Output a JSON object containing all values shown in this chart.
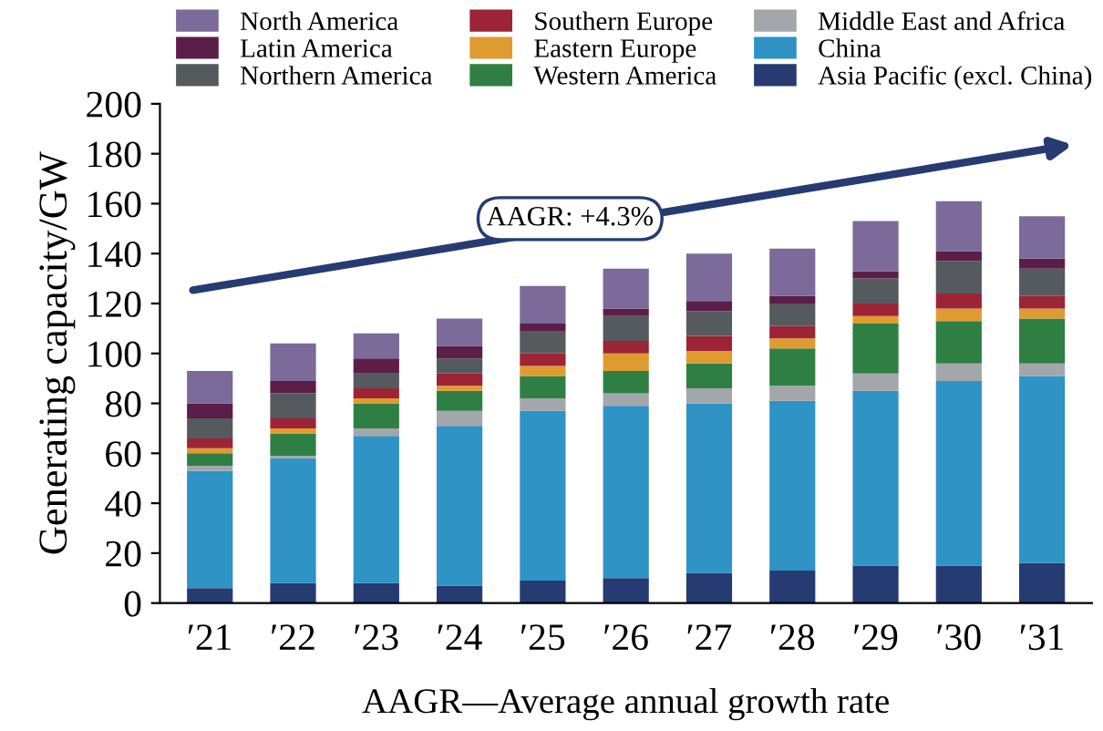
{
  "chart_data": {
    "type": "bar",
    "stacked": true,
    "ylabel": "Generating capacity/GW",
    "xlabel": "AAGR—Average annual growth rate",
    "categories": [
      "′21",
      "′22",
      "′23",
      "′24",
      "′25",
      "′26",
      "′27",
      "′28",
      "′29",
      "′30",
      "′31"
    ],
    "series": [
      {
        "name": "Asia Pacific (excl. China)",
        "color": "#263b72",
        "values": [
          6,
          8,
          8,
          7,
          9,
          10,
          12,
          13,
          15,
          15,
          16
        ]
      },
      {
        "name": "China",
        "color": "#2f93c6",
        "values": [
          47,
          50,
          59,
          64,
          68,
          69,
          68,
          68,
          70,
          74,
          75
        ]
      },
      {
        "name": "Middle East and Africa",
        "color": "#a3a6aa",
        "values": [
          2,
          1,
          3,
          6,
          5,
          5,
          6,
          6,
          7,
          7,
          5
        ]
      },
      {
        "name": "Western America",
        "color": "#2f7f45",
        "values": [
          5,
          9,
          10,
          8,
          9,
          9,
          10,
          15,
          20,
          17,
          18
        ]
      },
      {
        "name": "Eastern Europe",
        "color": "#e09b30",
        "values": [
          2,
          2,
          2,
          2,
          4,
          7,
          5,
          4,
          3,
          5,
          4
        ]
      },
      {
        "name": "Southern Europe",
        "color": "#9c2436",
        "values": [
          4,
          4,
          4,
          5,
          5,
          5,
          6,
          5,
          5,
          6,
          5
        ]
      },
      {
        "name": "Northern America",
        "color": "#555a5e",
        "values": [
          8,
          10,
          6,
          6,
          9,
          10,
          10,
          9,
          10,
          13,
          11
        ]
      },
      {
        "name": "Latin America",
        "color": "#5a1e48",
        "values": [
          6,
          5,
          6,
          5,
          3,
          3,
          4,
          3,
          3,
          4,
          4
        ]
      },
      {
        "name": "North America",
        "color": "#7b6a9a",
        "values": [
          13,
          15,
          10,
          11,
          15,
          16,
          19,
          19,
          20,
          20,
          17
        ]
      }
    ],
    "ylim": [
      0,
      200
    ],
    "yticks": [
      0,
      20,
      40,
      60,
      80,
      100,
      120,
      140,
      160,
      180,
      200
    ],
    "grid": false,
    "legend": "top",
    "annotations": [
      "AAGR: +4.3%"
    ]
  }
}
